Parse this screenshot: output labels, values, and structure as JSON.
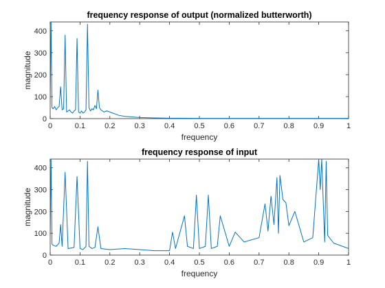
{
  "chart_data": [
    {
      "type": "line",
      "title": "frequency response of output (normalized butterworth)",
      "xlabel": "frequency",
      "ylabel": "magnitude",
      "xlim": [
        0,
        1
      ],
      "ylim": [
        0,
        440
      ],
      "xticks": [
        "0",
        "0.1",
        "0.2",
        "0.3",
        "0.4",
        "0.5",
        "0.6",
        "0.7",
        "0.8",
        "0.9",
        "1"
      ],
      "yticks": [
        "0",
        "100",
        "200",
        "300",
        "400"
      ],
      "grid": false,
      "line_color": "#0072BD",
      "series": [
        {
          "x": [
            0,
            0.003,
            0.006,
            0.01,
            0.015,
            0.02,
            0.025,
            0.03,
            0.035,
            0.04,
            0.045,
            0.05,
            0.055,
            0.06,
            0.065,
            0.07,
            0.075,
            0.08,
            0.085,
            0.09,
            0.095,
            0.1,
            0.105,
            0.11,
            0.115,
            0.12,
            0.125,
            0.13,
            0.135,
            0.14,
            0.145,
            0.15,
            0.155,
            0.16,
            0.165,
            0.17,
            0.175,
            0.18,
            0.19,
            0.2,
            0.21,
            0.22,
            0.23,
            0.25,
            0.3,
            0.35,
            0.4,
            0.5,
            0.6,
            0.7,
            0.8,
            0.9,
            1
          ],
          "y": [
            60,
            440,
            50,
            45,
            55,
            40,
            50,
            55,
            145,
            40,
            45,
            380,
            30,
            35,
            40,
            30,
            25,
            35,
            40,
            365,
            30,
            25,
            35,
            25,
            30,
            40,
            430,
            50,
            35,
            45,
            40,
            60,
            45,
            130,
            50,
            40,
            35,
            30,
            35,
            30,
            25,
            20,
            15,
            10,
            5,
            3,
            2,
            1,
            1,
            1,
            1,
            1,
            1
          ]
        }
      ]
    },
    {
      "type": "line",
      "title": "frequency response of input",
      "xlabel": "frequency",
      "ylabel": "magnitude",
      "xlim": [
        0,
        1
      ],
      "ylim": [
        0,
        440
      ],
      "xticks": [
        "0",
        "0.1",
        "0.2",
        "0.3",
        "0.4",
        "0.5",
        "0.6",
        "0.7",
        "0.8",
        "0.9",
        "1"
      ],
      "yticks": [
        "0",
        "100",
        "200",
        "300",
        "400"
      ],
      "grid": false,
      "line_color": "#0072BD",
      "series": [
        {
          "x": [
            0,
            0.003,
            0.006,
            0.01,
            0.02,
            0.03,
            0.035,
            0.04,
            0.05,
            0.06,
            0.08,
            0.09,
            0.1,
            0.11,
            0.12,
            0.125,
            0.13,
            0.14,
            0.15,
            0.16,
            0.17,
            0.2,
            0.25,
            0.3,
            0.35,
            0.4,
            0.41,
            0.42,
            0.45,
            0.46,
            0.48,
            0.49,
            0.5,
            0.52,
            0.53,
            0.54,
            0.56,
            0.57,
            0.6,
            0.62,
            0.65,
            0.7,
            0.72,
            0.73,
            0.74,
            0.75,
            0.76,
            0.765,
            0.77,
            0.78,
            0.79,
            0.8,
            0.82,
            0.85,
            0.88,
            0.9,
            0.905,
            0.91,
            0.92,
            0.925,
            0.93,
            0.95,
            1
          ],
          "y": [
            60,
            440,
            50,
            45,
            40,
            55,
            140,
            40,
            380,
            30,
            35,
            360,
            30,
            25,
            40,
            430,
            40,
            30,
            35,
            130,
            30,
            25,
            30,
            25,
            20,
            20,
            105,
            30,
            180,
            40,
            30,
            275,
            30,
            40,
            275,
            30,
            40,
            180,
            40,
            105,
            60,
            80,
            235,
            110,
            270,
            140,
            355,
            100,
            365,
            255,
            240,
            135,
            200,
            60,
            80,
            440,
            300,
            440,
            60,
            430,
            90,
            55,
            30
          ]
        }
      ]
    }
  ]
}
